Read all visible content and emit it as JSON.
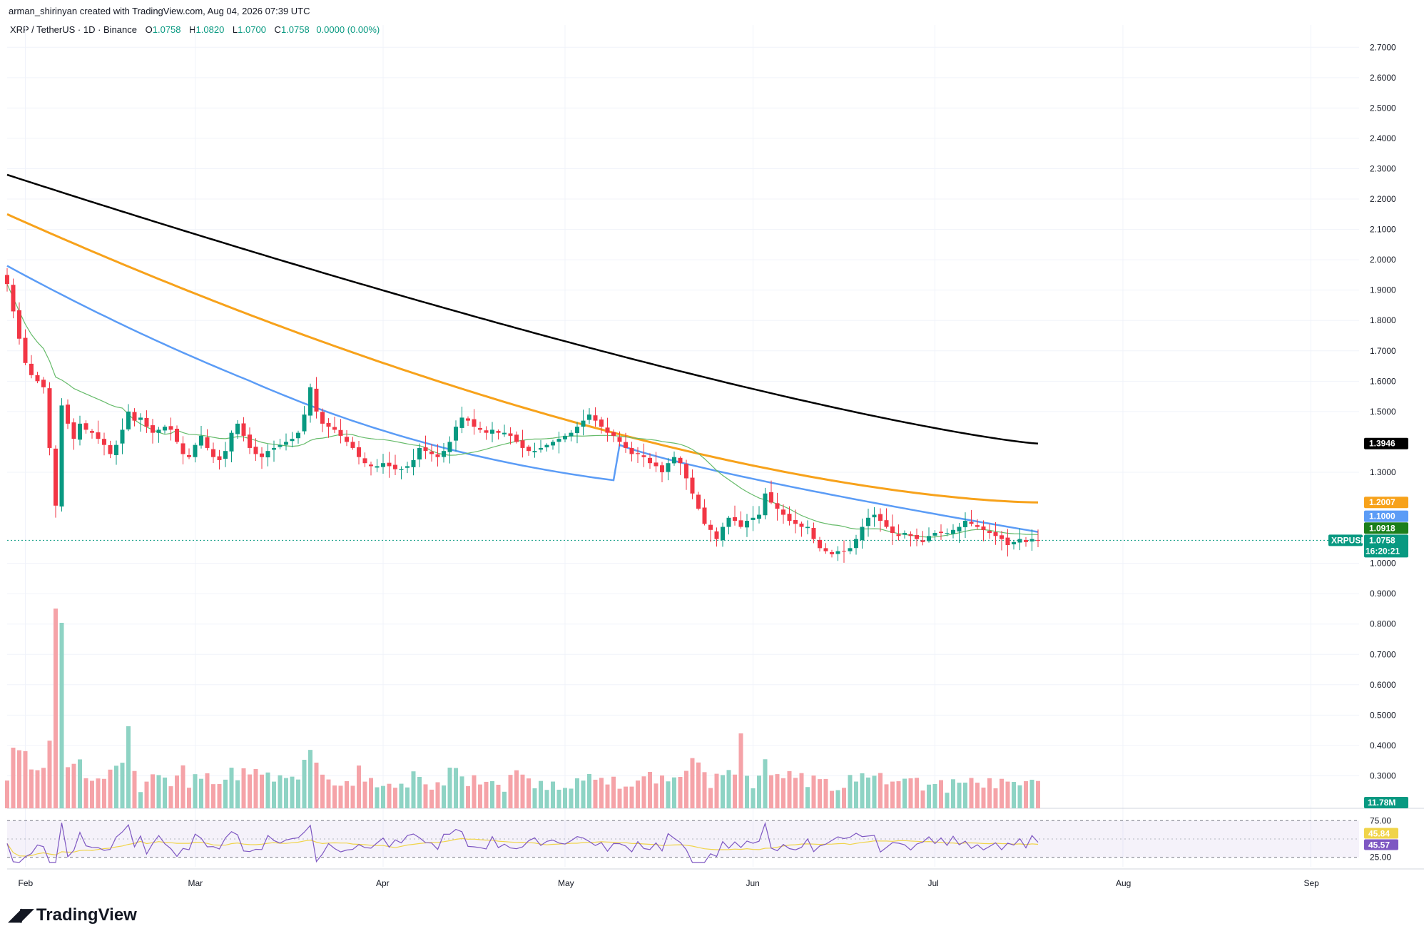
{
  "header": {
    "credit": "arman_shirinyan created with TradingView.com, Aug 04, 2026 07:39 UTC",
    "symbol": "XRP / TetherUS · 1D · Binance",
    "open_label": "O",
    "open": "1.0758",
    "high_label": "H",
    "high": "1.0820",
    "low_label": "L",
    "low": "1.0700",
    "close_label": "C",
    "close": "1.0758",
    "change": "0.0000 (0.00%)"
  },
  "brand": {
    "name": "TradingView"
  },
  "colors": {
    "up": "#089981",
    "down": "#f23645",
    "vol_up": "#8ed3c4",
    "vol_down": "#f5a3a8",
    "ma200": "#000000",
    "ma100": "#f7a21b",
    "ma50": "#5b9cf6",
    "ma20": "#66bb6a",
    "rsi": "#7e57c2",
    "rsi_ma": "#f0d44a"
  },
  "chart_data": {
    "type": "candlestick",
    "symbol": "XRPUSDT",
    "timeframe": "1D",
    "x_ticks": [
      "Feb",
      "Mar",
      "Apr",
      "May",
      "Jun",
      "Jul",
      "Aug",
      "Sep"
    ],
    "x_tick_days": [
      3,
      31,
      62,
      92,
      123,
      153,
      184,
      215
    ],
    "y_ticks": [
      "2.7000",
      "2.6000",
      "2.5000",
      "2.4000",
      "2.3000",
      "2.2000",
      "2.1000",
      "2.0000",
      "1.9000",
      "1.8000",
      "1.7000",
      "1.6000",
      "1.5000",
      "1.3000",
      "1.0000",
      "0.9000",
      "0.8000",
      "0.7000",
      "0.6000",
      "0.5000",
      "0.4000",
      "0.3000"
    ],
    "ylim": [
      0.2,
      2.75
    ],
    "closes": [
      1.92,
      1.83,
      1.74,
      1.66,
      1.62,
      1.6,
      1.58,
      1.38,
      1.19,
      1.52,
      1.46,
      1.41,
      1.46,
      1.44,
      1.43,
      1.41,
      1.39,
      1.36,
      1.39,
      1.44,
      1.5,
      1.47,
      1.48,
      1.45,
      1.43,
      1.44,
      1.45,
      1.44,
      1.4,
      1.36,
      1.35,
      1.39,
      1.42,
      1.38,
      1.35,
      1.34,
      1.37,
      1.43,
      1.46,
      1.42,
      1.38,
      1.36,
      1.35,
      1.37,
      1.38,
      1.39,
      1.4,
      1.41,
      1.43,
      1.49,
      1.58,
      1.5,
      1.46,
      1.45,
      1.44,
      1.42,
      1.4,
      1.38,
      1.35,
      1.33,
      1.32,
      1.32,
      1.33,
      1.32,
      1.31,
      1.31,
      1.32,
      1.34,
      1.38,
      1.37,
      1.36,
      1.35,
      1.37,
      1.4,
      1.45,
      1.48,
      1.47,
      1.45,
      1.44,
      1.43,
      1.44,
      1.43,
      1.43,
      1.42,
      1.4,
      1.38,
      1.37,
      1.37,
      1.38,
      1.39,
      1.4,
      1.41,
      1.42,
      1.43,
      1.45,
      1.47,
      1.49,
      1.47,
      1.45,
      1.43,
      1.42,
      1.4,
      1.38,
      1.36,
      1.36,
      1.35,
      1.33,
      1.32,
      1.3,
      1.33,
      1.35,
      1.33,
      1.28,
      1.23,
      1.18,
      1.13,
      1.11,
      1.08,
      1.12,
      1.15,
      1.14,
      1.12,
      1.14,
      1.15,
      1.16,
      1.23,
      1.2,
      1.18,
      1.16,
      1.14,
      1.13,
      1.12,
      1.12,
      1.08,
      1.05,
      1.04,
      1.03,
      1.04,
      1.04,
      1.05,
      1.08,
      1.12,
      1.15,
      1.16,
      1.14,
      1.12,
      1.1,
      1.09,
      1.1,
      1.09,
      1.08,
      1.07,
      1.09,
      1.1,
      1.1,
      1.1,
      1.11,
      1.12,
      1.14,
      1.13,
      1.12,
      1.11,
      1.1,
      1.09,
      1.08,
      1.06,
      1.07,
      1.08,
      1.07,
      1.08,
      1.0758
    ],
    "volume_last": "11.78M",
    "ma_values": [
      {
        "name": "MA 200",
        "value": "1.3946"
      },
      {
        "name": "MA 100",
        "value": "1.2007"
      },
      {
        "name": "MA 50",
        "value": "1.1000"
      },
      {
        "name": "MA 20",
        "value": "1.0918"
      }
    ],
    "price_tag": {
      "symbol": "XRPUSDT",
      "value": "1.0758",
      "countdown": "16:20:21"
    },
    "rsi": {
      "ticks": [
        "75.00",
        "25.00"
      ],
      "value": "45.57",
      "ma_value": "45.84"
    }
  }
}
